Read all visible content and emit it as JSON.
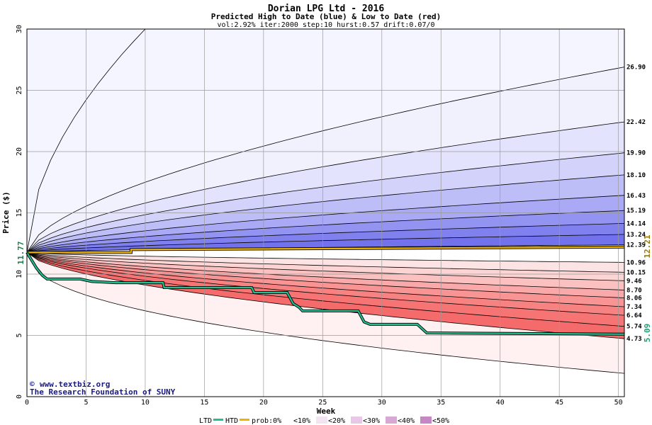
{
  "chart_data": {
    "type": "area",
    "title": "Dorian LPG Ltd - 2016",
    "subtitle": "Predicted High to Date (blue) &  Low to Date (red)",
    "params": "vol:2.92% iter:2000 step:10 hurst:0.57 drift:0.07/0",
    "xlabel": "Week",
    "ylabel": "Price ($)",
    "xlim": [
      0,
      50.5
    ],
    "ylim": [
      0,
      30
    ],
    "xticks": [
      "0",
      "5",
      "10",
      "15",
      "20",
      "25",
      "30",
      "35",
      "40",
      "45",
      "50"
    ],
    "yticks": [
      "0",
      "5",
      "10",
      "15",
      "20",
      "25",
      "30"
    ],
    "start_price": "11.77",
    "x": [
      0,
      1,
      2,
      3,
      4,
      5,
      6,
      7,
      8,
      9,
      10,
      11,
      12,
      13,
      14,
      15,
      16,
      17,
      18,
      19,
      20,
      21,
      22,
      23,
      24,
      25,
      26,
      27,
      28,
      29,
      30,
      31,
      32,
      33,
      34,
      35,
      36,
      37,
      38,
      39,
      40,
      41,
      42,
      43,
      44,
      45,
      46,
      47,
      48,
      49,
      50,
      50.5
    ],
    "high_curves": [
      {
        "end_label": "26.90",
        "end": 26.9
      },
      {
        "end_label": "22.42",
        "end": 22.42
      },
      {
        "end_label": "19.90",
        "end": 19.9
      },
      {
        "end_label": "18.10",
        "end": 18.1
      },
      {
        "end_label": "16.43",
        "end": 16.43
      },
      {
        "end_label": "15.19",
        "end": 15.19
      },
      {
        "end_label": "14.14",
        "end": 14.14
      },
      {
        "end_label": "13.24",
        "end": 13.24
      },
      {
        "end_label": "12.39",
        "end": 12.39
      }
    ],
    "high_outer_at_week_10": 30,
    "low_curves": [
      {
        "end_label": "10.96",
        "end": 10.96
      },
      {
        "end_label": "10.15",
        "end": 10.15
      },
      {
        "end_label": "9.46",
        "end": 9.46
      },
      {
        "end_label": "8.70",
        "end": 8.7
      },
      {
        "end_label": "8.06",
        "end": 8.06
      },
      {
        "end_label": "7.34",
        "end": 7.34
      },
      {
        "end_label": "6.64",
        "end": 6.64
      },
      {
        "end_label": "5.74",
        "end": 5.74
      },
      {
        "end_label": "4.73",
        "end": 4.73
      }
    ],
    "low_outer_end": 1.9,
    "htd_series": {
      "name": "HTD",
      "end_label": "12.21",
      "points": [
        [
          0,
          11.77
        ],
        [
          8.8,
          11.77
        ],
        [
          8.8,
          12.0
        ],
        [
          50.5,
          12.21
        ]
      ]
    },
    "ltd_series": {
      "name": "LTD",
      "end_label": "5.09",
      "points": [
        [
          0,
          11.77
        ],
        [
          0.8,
          10.5
        ],
        [
          1.3,
          9.9
        ],
        [
          1.7,
          9.6
        ],
        [
          4.5,
          9.6
        ],
        [
          5.5,
          9.4
        ],
        [
          7.5,
          9.3
        ],
        [
          11.5,
          9.3
        ],
        [
          11.6,
          8.9
        ],
        [
          19,
          8.9
        ],
        [
          19.2,
          8.5
        ],
        [
          22,
          8.5
        ],
        [
          22.5,
          7.6
        ],
        [
          23,
          7.3
        ],
        [
          23.3,
          7.0
        ],
        [
          28,
          7.0
        ],
        [
          28.5,
          6.1
        ],
        [
          29,
          5.9
        ],
        [
          33,
          5.9
        ],
        [
          33.8,
          5.2
        ],
        [
          50.5,
          5.1
        ]
      ]
    },
    "colors": {
      "ltd": "#20c090",
      "htd": "#f0b400",
      "ltd_label": "#20a070",
      "htd_label": "#9a7a00",
      "start_label": "#208050",
      "blue_bands": [
        "#f1f1fe",
        "#e3e3fd",
        "#d2d2fb",
        "#bdbdf8",
        "#a9a9f5",
        "#9393f1",
        "#8080ee",
        "#7272ec"
      ],
      "red_bands": [
        "#fde4e4",
        "#fdd4d4",
        "#fbc0c0",
        "#f9a9a9",
        "#f89494",
        "#f78282",
        "#f67474",
        "#f56a6a"
      ],
      "outer_blue": "#f5f5ff",
      "outer_red": "#fff1f1"
    }
  },
  "credit": {
    "line1": "www.textbiz.org",
    "line2": "The Research Foundation of SUNY"
  },
  "legend": {
    "ltd": "LTD",
    "htd": "HTD",
    "prob": "prob:0%",
    "items": [
      "<10%",
      "<20%",
      "<30%",
      "<40%",
      "<50%"
    ]
  }
}
